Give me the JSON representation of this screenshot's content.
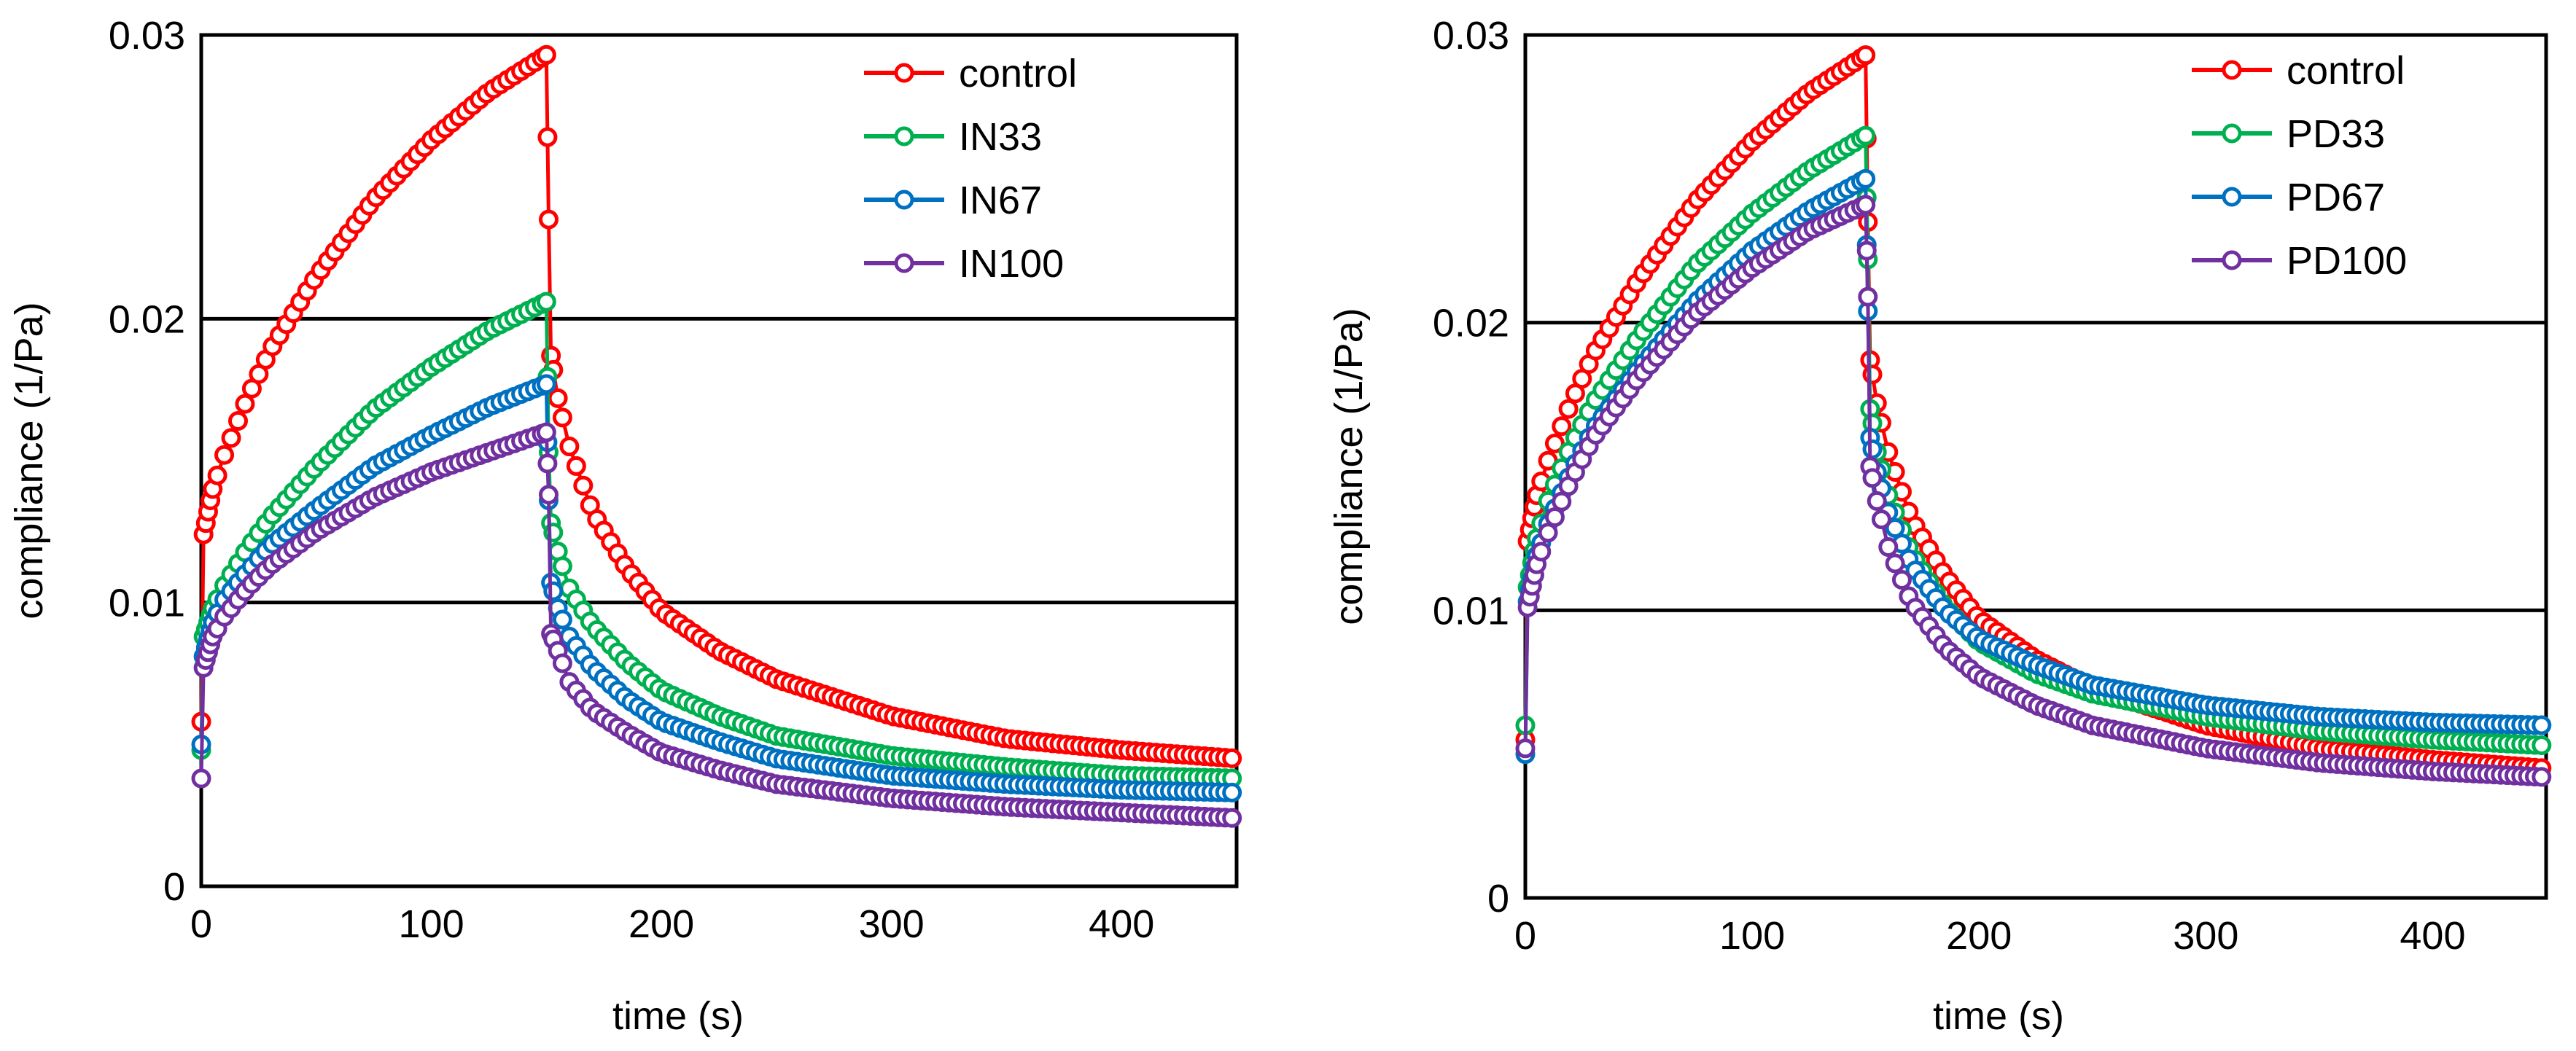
{
  "chart_data": [
    {
      "type": "line",
      "xlabel": "time (s)",
      "ylabel": "compliance (1/Pa)",
      "xlim": [
        0,
        450
      ],
      "ylim": [
        0,
        0.03
      ],
      "xticks": [
        "0",
        "100",
        "200",
        "300",
        "400"
      ],
      "yticks": [
        "0",
        "0.01",
        "0.02",
        "0.03"
      ],
      "grid": "horizontal",
      "legend": "top-right",
      "markers": "open-circle",
      "series": [
        {
          "name": "control",
          "color": "#ff0000",
          "x": [
            0,
            1,
            5,
            10,
            20,
            30,
            50,
            75,
            100,
            125,
            150,
            151,
            152,
            155,
            160,
            170,
            185,
            200,
            225,
            250,
            300,
            350,
            400,
            450
          ],
          "y": [
            0.0058,
            0.0124,
            0.014,
            0.0152,
            0.0172,
            0.0189,
            0.0215,
            0.0242,
            0.0263,
            0.028,
            0.0293,
            0.0235,
            0.0187,
            0.0172,
            0.0155,
            0.0132,
            0.0112,
            0.0097,
            0.0083,
            0.0073,
            0.006,
            0.0052,
            0.0048,
            0.0045
          ]
        },
        {
          "name": "IN33",
          "color": "#00b050",
          "x": [
            0,
            1,
            5,
            10,
            20,
            30,
            50,
            75,
            100,
            125,
            150,
            151,
            152,
            155,
            160,
            170,
            185,
            200,
            225,
            250,
            300,
            350,
            400,
            450
          ],
          "y": [
            0.0048,
            0.0088,
            0.0098,
            0.0106,
            0.0119,
            0.013,
            0.0148,
            0.0168,
            0.0183,
            0.0196,
            0.0206,
            0.0153,
            0.0128,
            0.0118,
            0.0105,
            0.0092,
            0.0079,
            0.0069,
            0.006,
            0.0053,
            0.0046,
            0.0042,
            0.0039,
            0.0038
          ]
        },
        {
          "name": "IN67",
          "color": "#0070c0",
          "x": [
            0,
            1,
            5,
            10,
            20,
            30,
            50,
            75,
            100,
            125,
            150,
            151,
            152,
            155,
            160,
            170,
            185,
            200,
            225,
            250,
            300,
            350,
            400,
            450
          ],
          "y": [
            0.005,
            0.0081,
            0.0093,
            0.0101,
            0.0111,
            0.012,
            0.0133,
            0.0148,
            0.0159,
            0.0169,
            0.0177,
            0.0136,
            0.0107,
            0.0098,
            0.0088,
            0.0077,
            0.0066,
            0.0058,
            0.0051,
            0.0045,
            0.0039,
            0.0036,
            0.0034,
            0.0033
          ]
        },
        {
          "name": "IN100",
          "color": "#7030a0",
          "x": [
            0,
            1,
            5,
            10,
            20,
            30,
            50,
            75,
            100,
            125,
            150,
            151,
            152,
            155,
            160,
            170,
            185,
            200,
            225,
            250,
            300,
            350,
            400,
            450
          ],
          "y": [
            0.0038,
            0.0077,
            0.0088,
            0.0095,
            0.0105,
            0.0113,
            0.0125,
            0.0137,
            0.0146,
            0.0153,
            0.016,
            0.0138,
            0.0089,
            0.0083,
            0.0072,
            0.0062,
            0.0054,
            0.0047,
            0.0041,
            0.0036,
            0.0031,
            0.0028,
            0.0026,
            0.0024
          ]
        }
      ]
    },
    {
      "type": "line",
      "xlabel": "time (s)",
      "ylabel": "compliance (1/Pa)",
      "xlim": [
        0,
        450
      ],
      "ylim": [
        0,
        0.03
      ],
      "xticks": [
        "0",
        "100",
        "200",
        "300",
        "400"
      ],
      "yticks": [
        "0",
        "0.01",
        "0.02",
        "0.03"
      ],
      "grid": "horizontal",
      "legend": "top-right",
      "markers": "open-circle",
      "series": [
        {
          "name": "control",
          "color": "#ff0000",
          "x": [
            0,
            1,
            5,
            10,
            20,
            30,
            50,
            75,
            100,
            125,
            150,
            151,
            152,
            155,
            160,
            170,
            185,
            200,
            225,
            250,
            300,
            350,
            400,
            450
          ],
          "y": [
            0.0055,
            0.0124,
            0.014,
            0.0152,
            0.0172,
            0.0189,
            0.0215,
            0.0242,
            0.0263,
            0.028,
            0.0293,
            0.0235,
            0.0187,
            0.0172,
            0.0155,
            0.0132,
            0.0112,
            0.0097,
            0.0083,
            0.0073,
            0.006,
            0.0052,
            0.0048,
            0.0045
          ]
        },
        {
          "name": "PD33",
          "color": "#00b050",
          "x": [
            0,
            1,
            5,
            10,
            20,
            30,
            50,
            75,
            100,
            125,
            150,
            151,
            152,
            155,
            160,
            170,
            185,
            200,
            225,
            250,
            300,
            350,
            400,
            450
          ],
          "y": [
            0.006,
            0.0108,
            0.0125,
            0.0138,
            0.0157,
            0.0172,
            0.0195,
            0.022,
            0.0238,
            0.0253,
            0.0265,
            0.0222,
            0.017,
            0.0155,
            0.014,
            0.012,
            0.0101,
            0.0089,
            0.0078,
            0.0071,
            0.0063,
            0.0058,
            0.0055,
            0.0053
          ]
        },
        {
          "name": "PD67",
          "color": "#0070c0",
          "x": [
            0,
            1,
            5,
            10,
            20,
            30,
            50,
            75,
            100,
            125,
            150,
            151,
            152,
            155,
            160,
            170,
            185,
            200,
            225,
            250,
            300,
            350,
            400,
            450
          ],
          "y": [
            0.005,
            0.0103,
            0.0119,
            0.013,
            0.0148,
            0.0163,
            0.0184,
            0.0207,
            0.0225,
            0.0239,
            0.025,
            0.0204,
            0.016,
            0.0148,
            0.0134,
            0.0116,
            0.01,
            0.009,
            0.0081,
            0.0074,
            0.0067,
            0.0063,
            0.0061,
            0.006
          ]
        },
        {
          "name": "PD100",
          "color": "#7030a0",
          "x": [
            0,
            1,
            5,
            10,
            20,
            30,
            50,
            75,
            100,
            125,
            150,
            151,
            152,
            155,
            160,
            170,
            185,
            200,
            225,
            250,
            300,
            350,
            400,
            450
          ],
          "y": [
            0.0052,
            0.0101,
            0.0116,
            0.0127,
            0.0145,
            0.016,
            0.0181,
            0.0203,
            0.0219,
            0.0232,
            0.0241,
            0.0209,
            0.015,
            0.0138,
            0.0122,
            0.0103,
            0.0087,
            0.0077,
            0.0067,
            0.006,
            0.0052,
            0.0047,
            0.0044,
            0.0042
          ]
        }
      ]
    }
  ]
}
